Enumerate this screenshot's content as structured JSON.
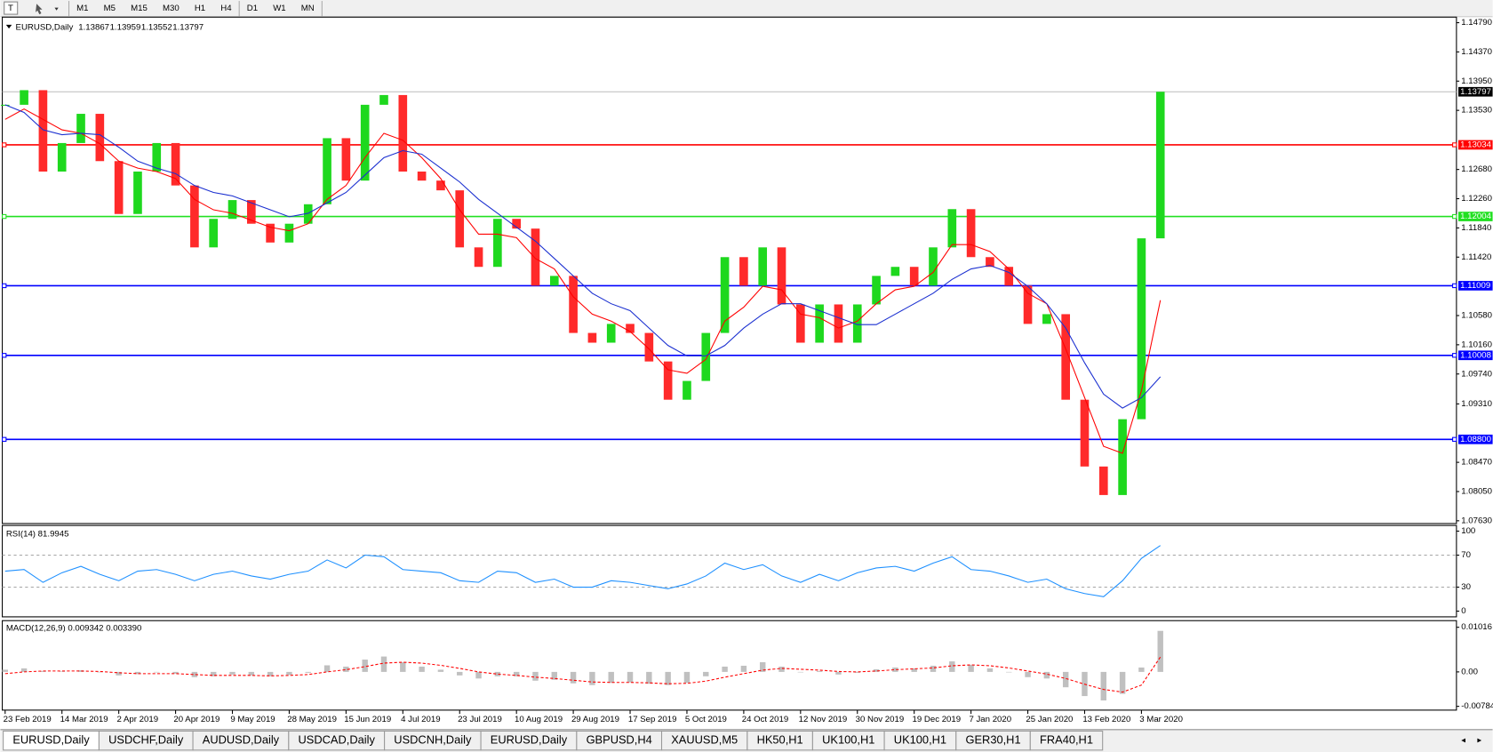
{
  "toolbar": {
    "buttons": [
      "M1",
      "M5",
      "M15",
      "M30",
      "H1",
      "H4",
      "D1",
      "W1",
      "MN"
    ]
  },
  "chart_data": [
    {
      "type": "candlestick",
      "title": "EURUSD,Daily",
      "quote": [
        1.13867,
        1.13959,
        1.13552,
        1.13797
      ],
      "categories": [
        "23 Feb 2019",
        null,
        null,
        "14 Mar 2019",
        null,
        null,
        "2 Apr 2019",
        null,
        null,
        "20 Apr 2019",
        null,
        null,
        "9 May 2019",
        null,
        null,
        "28 May 2019",
        null,
        null,
        "15 Jun 2019",
        null,
        null,
        "4 Jul 2019",
        null,
        null,
        "23 Jul 2019",
        null,
        null,
        "10 Aug 2019",
        null,
        null,
        "29 Aug 2019",
        null,
        null,
        "17 Sep 2019",
        null,
        null,
        "5 Oct 2019",
        null,
        null,
        "24 Oct 2019",
        null,
        null,
        "12 Nov 2019",
        null,
        null,
        "30 Nov 2019",
        null,
        null,
        "19 Dec 2019",
        null,
        null,
        "7 Jan 2020",
        null,
        null,
        "25 Jan 2020",
        null,
        null,
        "13 Feb 2020",
        null,
        null,
        "3 Mar 2020",
        null
      ],
      "values": [
        1.1361,
        1.1382,
        1.1265,
        1.1306,
        1.1348,
        1.128,
        1.1204,
        1.1265,
        1.1306,
        1.1245,
        1.1156,
        1.1197,
        1.1224,
        1.119,
        1.1163,
        1.119,
        1.1218,
        1.1313,
        1.1252,
        1.1361,
        1.1375,
        1.1265,
        1.1252,
        1.1238,
        1.1156,
        1.1128,
        1.1197,
        1.1183,
        1.1101,
        1.1115,
        1.1033,
        1.1019,
        1.1046,
        1.1033,
        1.0992,
        1.0937,
        1.0964,
        1.1033,
        1.1142,
        1.1101,
        1.1156,
        1.1074,
        1.1019,
        1.1074,
        1.1019,
        1.1074,
        1.1115,
        1.1128,
        1.1101,
        1.1156,
        1.1211,
        1.1142,
        1.1128,
        1.1101,
        1.1046,
        1.106,
        1.0937,
        1.0841,
        1.08,
        1.0909,
        1.1169,
        1.13797
      ],
      "color_up": "#1ed81e",
      "color_down": "#ff2a2a",
      "series": [
        {
          "color": "#ff0000",
          "values": [
            1.134,
            1.1355,
            1.134,
            1.1325,
            1.132,
            1.1305,
            1.128,
            1.127,
            1.1265,
            1.1255,
            1.1225,
            1.121,
            1.1205,
            1.1195,
            1.1185,
            1.118,
            1.119,
            1.1225,
            1.1245,
            1.1285,
            1.132,
            1.131,
            1.1285,
            1.1255,
            1.121,
            1.1175,
            1.1175,
            1.117,
            1.114,
            1.1125,
            1.1085,
            1.106,
            1.105,
            1.1035,
            1.101,
            1.098,
            1.0975,
            1.0995,
            1.105,
            1.107,
            1.11,
            1.1095,
            1.106,
            1.1055,
            1.104,
            1.105,
            1.1075,
            1.1095,
            1.11,
            1.112,
            1.116,
            1.116,
            1.115,
            1.1125,
            1.109,
            1.1075,
            1.101,
            1.094,
            1.087,
            1.086,
            1.095,
            1.108
          ]
        },
        {
          "color": "#1a2fd0",
          "values": [
            1.1361,
            1.135,
            1.1325,
            1.1318,
            1.132,
            1.1318,
            1.13,
            1.128,
            1.127,
            1.1262,
            1.1245,
            1.1235,
            1.123,
            1.122,
            1.121,
            1.12,
            1.1205,
            1.122,
            1.1235,
            1.126,
            1.1285,
            1.1295,
            1.129,
            1.127,
            1.125,
            1.1225,
            1.1205,
            1.1185,
            1.1165,
            1.114,
            1.1115,
            1.109,
            1.1075,
            1.1065,
            1.104,
            1.1015,
            1.1,
            1.1,
            1.1015,
            1.104,
            1.106,
            1.1075,
            1.1075,
            1.1065,
            1.1055,
            1.1045,
            1.1045,
            1.106,
            1.1075,
            1.109,
            1.111,
            1.1125,
            1.113,
            1.112,
            1.11,
            1.1075,
            1.104,
            1.099,
            1.0945,
            1.0925,
            1.094,
            1.097
          ]
        }
      ],
      "current": 1.13797,
      "levels": [
        {
          "value": 1.13034,
          "color": "#ff0000"
        },
        {
          "value": 1.12004,
          "color": "#22e022"
        },
        {
          "value": 1.11009,
          "color": "#0000ff"
        },
        {
          "value": 1.10008,
          "color": "#0000ff"
        },
        {
          "value": 1.088,
          "label": "1.08800",
          "color": "#0000ff"
        }
      ],
      "ylim": [
        1.0759,
        1.1487
      ],
      "yticks": [
        {
          "value": 1.1479,
          "label": "1.14790"
        },
        {
          "value": 1.1437,
          "label": "1.14370"
        },
        {
          "value": 1.1395,
          "label": "1.13950"
        },
        {
          "value": 1.1353,
          "label": "1.13530"
        },
        {
          "value": 1.1268,
          "label": "1.12680"
        },
        {
          "value": 1.1226,
          "label": "1.12260"
        },
        {
          "value": 1.1184,
          "label": "1.11840"
        },
        {
          "value": 1.1142,
          "label": "1.11420"
        },
        {
          "value": 1.1058,
          "label": "1.10580"
        },
        {
          "value": 1.1016,
          "label": "1.10160"
        },
        {
          "value": 1.0974,
          "label": "1.09740"
        },
        {
          "value": 1.0931,
          "label": "1.09310"
        },
        {
          "value": 1.0847,
          "label": "1.08470"
        },
        {
          "value": 1.0805,
          "label": "1.08050"
        },
        {
          "value": 1.0763,
          "label": "1.07630"
        }
      ]
    },
    {
      "type": "line",
      "title": "RSI(14) 81.9945",
      "color": "#1e90ff",
      "values": [
        50,
        52,
        36,
        48,
        56,
        46,
        38,
        50,
        52,
        46,
        38,
        46,
        50,
        44,
        40,
        46,
        50,
        64,
        54,
        70,
        68,
        52,
        50,
        48,
        38,
        36,
        50,
        48,
        36,
        40,
        30,
        30,
        38,
        36,
        32,
        28,
        34,
        44,
        60,
        52,
        58,
        44,
        36,
        46,
        38,
        48,
        54,
        56,
        50,
        60,
        68,
        52,
        50,
        44,
        36,
        40,
        28,
        22,
        18,
        38,
        66,
        82
      ],
      "levels": [
        70,
        30
      ],
      "ylim": [
        -7.1,
        107.1
      ],
      "yticks": [
        100,
        70,
        30,
        0
      ]
    },
    {
      "type": "macd",
      "title": "MACD(12,26,9) 0.009342 0.003390",
      "color": "#c0c0c0",
      "signal_color": "#ff0000",
      "values": [
        0.0005,
        0.0008,
        0.0002,
        0.0001,
        0.0004,
        0,
        -0.0008,
        -0.0005,
        -0.0001,
        -0.0004,
        -0.0012,
        -0.001,
        -0.0006,
        -0.0008,
        -0.001,
        -0.0007,
        -0.0002,
        0.0015,
        0.0012,
        0.0028,
        0.0035,
        0.0022,
        0.0012,
        0.0005,
        -0.0008,
        -0.0015,
        -0.001,
        -0.001,
        -0.002,
        -0.0018,
        -0.0026,
        -0.003,
        -0.0025,
        -0.0024,
        -0.0027,
        -0.003,
        -0.0025,
        -0.001,
        0.0012,
        0.0014,
        0.0022,
        0.0012,
        0,
        0.0002,
        -0.0006,
        -0.0002,
        0.0006,
        0.001,
        0.0008,
        0.0014,
        0.0024,
        0.0016,
        0.0008,
        0,
        -0.0012,
        -0.0015,
        -0.0035,
        -0.0055,
        -0.0065,
        -0.005,
        0.001,
        0.009342
      ],
      "signal": [
        -0.0004,
        0,
        0.0002,
        0.0002,
        0.0002,
        0.0001,
        -0.0002,
        -0.0004,
        -0.0004,
        -0.0004,
        -0.0006,
        -0.0008,
        -0.0008,
        -0.0008,
        -0.0009,
        -0.0008,
        -0.0006,
        0,
        0.0005,
        0.0012,
        0.002,
        0.0022,
        0.002,
        0.0015,
        0.0008,
        0,
        -0.0005,
        -0.0008,
        -0.0012,
        -0.0015,
        -0.0019,
        -0.0023,
        -0.0024,
        -0.0024,
        -0.0025,
        -0.0027,
        -0.0026,
        -0.0021,
        -0.0012,
        -0.0004,
        0.0004,
        0.0008,
        0.0006,
        0.0004,
        0.0001,
        0,
        0.0002,
        0.0005,
        0.0007,
        0.0009,
        0.0014,
        0.0016,
        0.0014,
        0.0009,
        0.0002,
        -0.0005,
        -0.0015,
        -0.0028,
        -0.004,
        -0.0046,
        -0.003,
        0.00339
      ],
      "ylim": [
        -0.0087,
        0.01167
      ],
      "yticks": [
        0.01016,
        {
          "value": 0,
          "label": "0.00"
        },
        -0.00784
      ]
    }
  ],
  "tabs": [
    "EURUSD,Daily",
    "USDCHF,Daily",
    "AUDUSD,Daily",
    "USDCAD,Daily",
    "USDCNH,Daily",
    "EURUSD,Daily",
    "GBPUSD,H4",
    "XAUUSD,M5",
    "HK50,H1",
    "UK100,H1",
    "UK100,H1",
    "GER30,H1",
    "FRA40,H1"
  ]
}
